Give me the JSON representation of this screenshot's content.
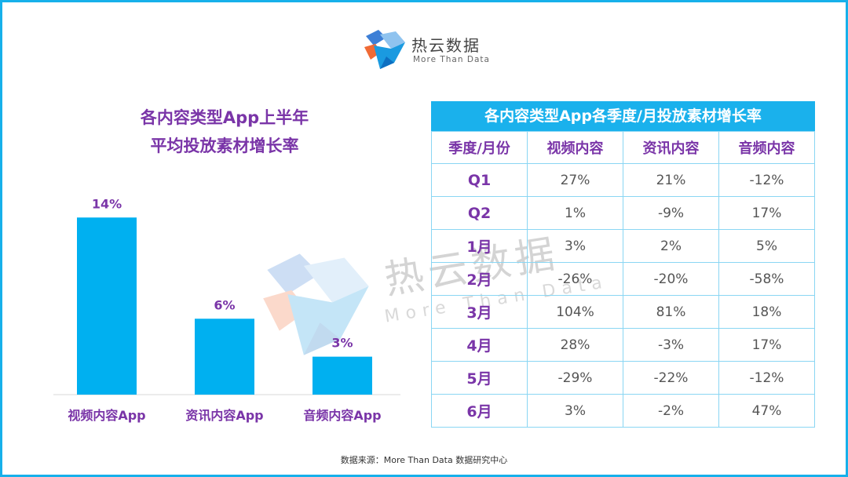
{
  "brand": {
    "name": "热云数据",
    "tagline": "More Than Data"
  },
  "watermark": {
    "name": "热云数据",
    "tagline": "More Than Data"
  },
  "colors": {
    "accent": "#17b0ea",
    "bar": "#00b0f0",
    "purple": "#7a35a8"
  },
  "chart_data": {
    "type": "bar",
    "title_lines": [
      "各内容类型App上半年",
      "平均投放素材增长率"
    ],
    "categories": [
      "视频内容App",
      "资讯内容App",
      "音频内容App"
    ],
    "values": [
      14,
      6,
      3
    ],
    "value_labels": [
      "14%",
      "6%",
      "3%"
    ],
    "ylim": [
      0,
      16
    ],
    "grid": false,
    "xlabel": "",
    "ylabel": ""
  },
  "table": {
    "title": "各内容类型App各季度/月投放素材增长率",
    "headers": [
      "季度/月份",
      "视频内容",
      "资讯内容",
      "音频内容"
    ],
    "rows": [
      [
        "Q1",
        "27%",
        "21%",
        "-12%"
      ],
      [
        "Q2",
        "1%",
        "-9%",
        "17%"
      ],
      [
        "1月",
        "3%",
        "2%",
        "5%"
      ],
      [
        "2月",
        "-26%",
        "-20%",
        "-58%"
      ],
      [
        "3月",
        "104%",
        "81%",
        "18%"
      ],
      [
        "4月",
        "28%",
        "-3%",
        "17%"
      ],
      [
        "5月",
        "-29%",
        "-22%",
        "-12%"
      ],
      [
        "6月",
        "3%",
        "-2%",
        "47%"
      ]
    ]
  },
  "source": "数据来源：More Than Data 数据研究中心"
}
